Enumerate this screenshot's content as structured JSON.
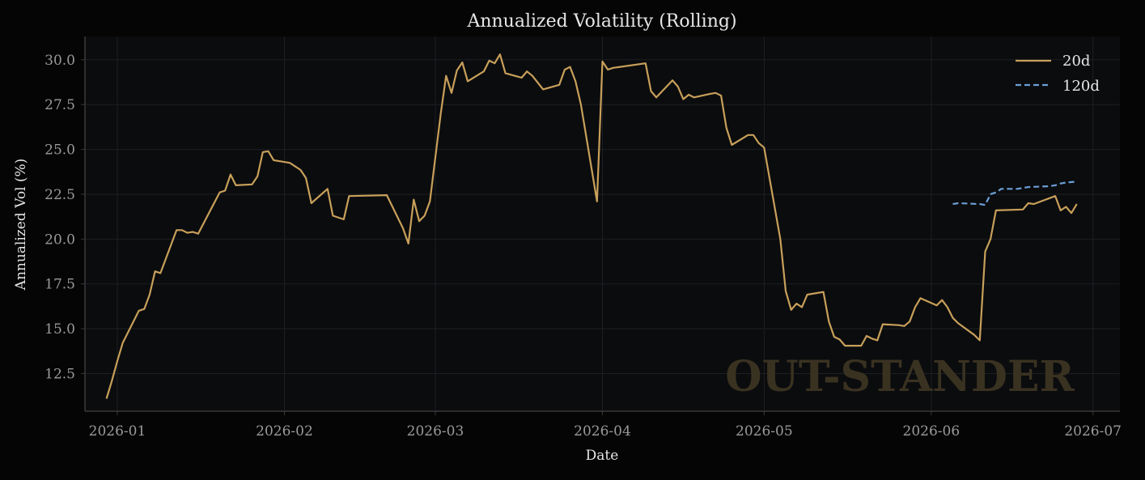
{
  "title": "Annualized Volatility (Rolling)",
  "xlabel": "Date",
  "ylabel": "Annualized Vol (%)",
  "watermark": "OUT-STANDER",
  "colors": {
    "background": "#050505",
    "plot_bg": "#0b0c0e",
    "grid": "#1d1f22",
    "axis": "#3a3a3a",
    "tick_text": "#9a9a9a",
    "label_text": "#e6e6e6",
    "watermark": "#3a3221",
    "series_20d": "#c8a05a",
    "series_120d": "#6b9fd6"
  },
  "chart_data": {
    "type": "line",
    "title": "Annualized Volatility (Rolling)",
    "xlabel": "Date",
    "ylabel": "Annualized Vol (%)",
    "xlim": [
      "2025-12-26",
      "2026-07-06"
    ],
    "ylim": [
      10.4,
      31.3
    ],
    "x_ticks": [
      "2026-01-01",
      "2026-02-01",
      "2026-03-01",
      "2026-04-01",
      "2026-05-01",
      "2026-06-01",
      "2026-07-01"
    ],
    "x_tick_labels": [
      "2026-01",
      "2026-02",
      "2026-03",
      "2026-04",
      "2026-05",
      "2026-06",
      "2026-07"
    ],
    "y_ticks": [
      12.5,
      15.0,
      17.5,
      20.0,
      22.5,
      25.0,
      27.5,
      30.0
    ],
    "y_tick_labels": [
      "12.5",
      "15.0",
      "17.5",
      "20.0",
      "22.5",
      "25.0",
      "27.5",
      "30.0"
    ],
    "grid": true,
    "legend_position": "top-right",
    "series": [
      {
        "name": "20d",
        "style": "solid",
        "color": "#c8a05a",
        "points": [
          [
            "2025-12-30",
            11.1
          ],
          [
            "2025-12-31",
            12.1
          ],
          [
            "2026-01-01",
            13.2
          ],
          [
            "2026-01-02",
            14.2
          ],
          [
            "2026-01-05",
            16.0
          ],
          [
            "2026-01-06",
            16.1
          ],
          [
            "2026-01-07",
            16.9
          ],
          [
            "2026-01-08",
            18.2
          ],
          [
            "2026-01-09",
            18.1
          ],
          [
            "2026-01-12",
            20.5
          ],
          [
            "2026-01-13",
            20.5
          ],
          [
            "2026-01-14",
            20.35
          ],
          [
            "2026-01-15",
            20.4
          ],
          [
            "2026-01-16",
            20.3
          ],
          [
            "2026-01-20",
            22.6
          ],
          [
            "2026-01-21",
            22.7
          ],
          [
            "2026-01-22",
            23.6
          ],
          [
            "2026-01-23",
            23.0
          ],
          [
            "2026-01-26",
            23.05
          ],
          [
            "2026-01-27",
            23.5
          ],
          [
            "2026-01-28",
            24.85
          ],
          [
            "2026-01-29",
            24.9
          ],
          [
            "2026-01-30",
            24.4
          ],
          [
            "2026-02-02",
            24.25
          ],
          [
            "2026-02-03",
            24.05
          ],
          [
            "2026-02-04",
            23.85
          ],
          [
            "2026-02-05",
            23.4
          ],
          [
            "2026-02-06",
            22.0
          ],
          [
            "2026-02-09",
            22.8
          ],
          [
            "2026-02-10",
            21.3
          ],
          [
            "2026-02-12",
            21.1
          ],
          [
            "2026-02-13",
            22.4
          ],
          [
            "2026-02-20",
            22.45
          ],
          [
            "2026-02-23",
            20.6
          ],
          [
            "2026-02-24",
            19.75
          ],
          [
            "2026-02-25",
            22.2
          ],
          [
            "2026-02-26",
            21.0
          ],
          [
            "2026-02-27",
            21.3
          ],
          [
            "2026-02-28",
            22.1
          ],
          [
            "2026-03-02",
            27.0
          ],
          [
            "2026-03-03",
            29.1
          ],
          [
            "2026-03-04",
            28.15
          ],
          [
            "2026-03-05",
            29.4
          ],
          [
            "2026-03-06",
            29.85
          ],
          [
            "2026-03-07",
            28.8
          ],
          [
            "2026-03-10",
            29.35
          ],
          [
            "2026-03-11",
            29.95
          ],
          [
            "2026-03-12",
            29.8
          ],
          [
            "2026-03-13",
            30.3
          ],
          [
            "2026-03-14",
            29.25
          ],
          [
            "2026-03-17",
            29.0
          ],
          [
            "2026-03-18",
            29.35
          ],
          [
            "2026-03-19",
            29.1
          ],
          [
            "2026-03-21",
            28.35
          ],
          [
            "2026-03-24",
            28.6
          ],
          [
            "2026-03-25",
            29.45
          ],
          [
            "2026-03-26",
            29.6
          ],
          [
            "2026-03-27",
            28.8
          ],
          [
            "2026-03-28",
            27.5
          ],
          [
            "2026-03-31",
            22.1
          ],
          [
            "2026-04-01",
            29.9
          ],
          [
            "2026-04-02",
            29.45
          ],
          [
            "2026-04-03",
            29.55
          ],
          [
            "2026-04-09",
            29.8
          ],
          [
            "2026-04-10",
            28.25
          ],
          [
            "2026-04-11",
            27.9
          ],
          [
            "2026-04-14",
            28.85
          ],
          [
            "2026-04-15",
            28.5
          ],
          [
            "2026-04-16",
            27.8
          ],
          [
            "2026-04-17",
            28.05
          ],
          [
            "2026-04-18",
            27.9
          ],
          [
            "2026-04-21",
            28.1
          ],
          [
            "2026-04-22",
            28.15
          ],
          [
            "2026-04-23",
            28.0
          ],
          [
            "2026-04-24",
            26.2
          ],
          [
            "2026-04-25",
            25.25
          ],
          [
            "2026-04-28",
            25.8
          ],
          [
            "2026-04-29",
            25.8
          ],
          [
            "2026-04-30",
            25.35
          ],
          [
            "2026-05-01",
            25.1
          ],
          [
            "2026-05-04",
            20.0
          ],
          [
            "2026-05-05",
            17.1
          ],
          [
            "2026-05-06",
            16.05
          ],
          [
            "2026-05-07",
            16.4
          ],
          [
            "2026-05-08",
            16.2
          ],
          [
            "2026-05-09",
            16.9
          ],
          [
            "2026-05-12",
            17.05
          ],
          [
            "2026-05-13",
            15.4
          ],
          [
            "2026-05-14",
            14.55
          ],
          [
            "2026-05-15",
            14.4
          ],
          [
            "2026-05-16",
            14.05
          ],
          [
            "2026-05-19",
            14.05
          ],
          [
            "2026-05-20",
            14.6
          ],
          [
            "2026-05-21",
            14.45
          ],
          [
            "2026-05-22",
            14.35
          ],
          [
            "2026-05-23",
            15.25
          ],
          [
            "2026-05-26",
            15.2
          ],
          [
            "2026-05-27",
            15.15
          ],
          [
            "2026-05-28",
            15.4
          ],
          [
            "2026-05-29",
            16.2
          ],
          [
            "2026-05-30",
            16.7
          ],
          [
            "2026-06-02",
            16.3
          ],
          [
            "2026-06-03",
            16.6
          ],
          [
            "2026-06-04",
            16.2
          ],
          [
            "2026-06-05",
            15.6
          ],
          [
            "2026-06-06",
            15.3
          ],
          [
            "2026-06-09",
            14.65
          ],
          [
            "2026-06-10",
            14.35
          ],
          [
            "2026-06-11",
            19.3
          ],
          [
            "2026-06-12",
            20.0
          ],
          [
            "2026-06-13",
            21.6
          ],
          [
            "2026-06-18",
            21.65
          ],
          [
            "2026-06-19",
            22.0
          ],
          [
            "2026-06-20",
            21.95
          ],
          [
            "2026-06-24",
            22.4
          ],
          [
            "2026-06-25",
            21.6
          ],
          [
            "2026-06-26",
            21.8
          ],
          [
            "2026-06-27",
            21.45
          ],
          [
            "2026-06-28",
            21.95
          ]
        ]
      },
      {
        "name": "120d",
        "style": "dashed",
        "color": "#6b9fd6",
        "points": [
          [
            "2026-06-05",
            21.95
          ],
          [
            "2026-06-06",
            22.0
          ],
          [
            "2026-06-10",
            21.95
          ],
          [
            "2026-06-11",
            21.9
          ],
          [
            "2026-06-12",
            22.5
          ],
          [
            "2026-06-13",
            22.6
          ],
          [
            "2026-06-14",
            22.8
          ],
          [
            "2026-06-17",
            22.8
          ],
          [
            "2026-06-18",
            22.85
          ],
          [
            "2026-06-19",
            22.9
          ],
          [
            "2026-06-23",
            22.95
          ],
          [
            "2026-06-24",
            23.0
          ],
          [
            "2026-06-25",
            23.1
          ],
          [
            "2026-06-26",
            23.15
          ],
          [
            "2026-06-28",
            23.2
          ]
        ]
      }
    ]
  }
}
